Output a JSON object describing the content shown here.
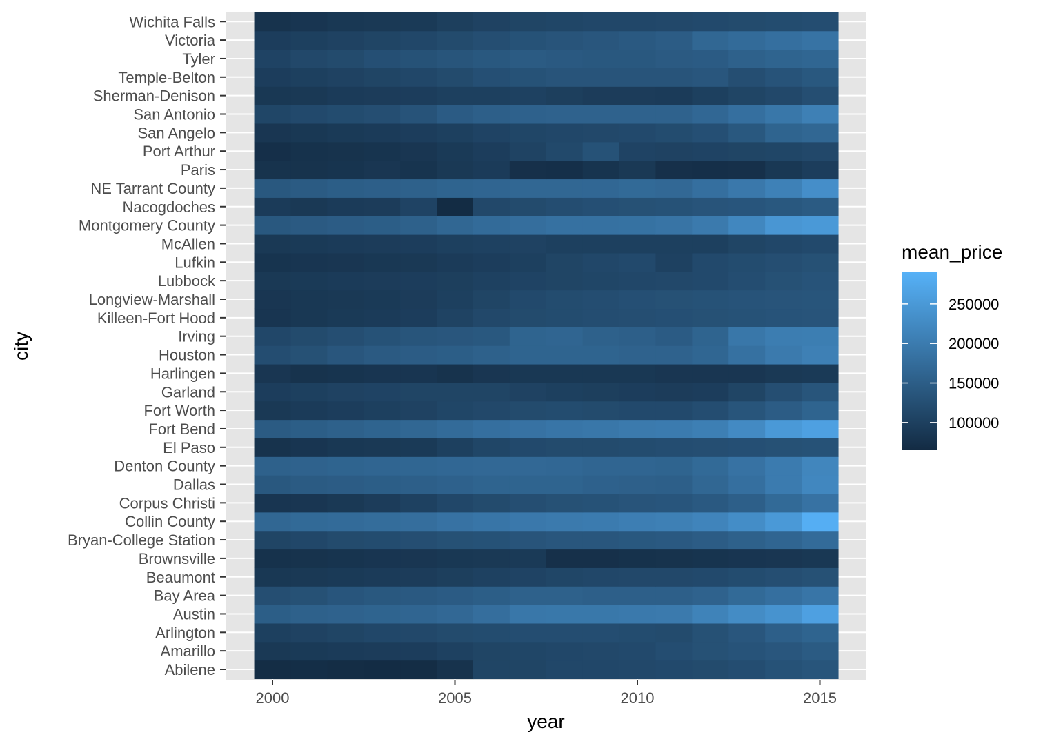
{
  "chart_data": {
    "type": "heatmap",
    "xlabel": "year",
    "ylabel": "city",
    "x": [
      2000,
      2001,
      2002,
      2003,
      2004,
      2005,
      2006,
      2007,
      2008,
      2009,
      2010,
      2011,
      2012,
      2013,
      2014,
      2015
    ],
    "x_ticks": [
      "2000",
      "2005",
      "2010",
      "2015"
    ],
    "xlim": [
      1999,
      2016
    ],
    "cities": [
      "Abilene",
      "Amarillo",
      "Arlington",
      "Austin",
      "Bay Area",
      "Beaumont",
      "Brownsville",
      "Bryan-College Station",
      "Collin County",
      "Corpus Christi",
      "Dallas",
      "Denton County",
      "El Paso",
      "Fort Bend",
      "Fort Worth",
      "Garland",
      "Harlingen",
      "Houston",
      "Irving",
      "Killeen-Fort Hood",
      "Longview-Marshall",
      "Lubbock",
      "Lufkin",
      "McAllen",
      "Montgomery County",
      "Nacogdoches",
      "NE Tarrant County",
      "Paris",
      "Port Arthur",
      "San Angelo",
      "San Antonio",
      "Sherman-Denison",
      "Temple-Belton",
      "Tyler",
      "Victoria",
      "Wichita Falls"
    ],
    "values": [
      [
        68000,
        70000,
        68000,
        66000,
        68000,
        78000,
        108000,
        108000,
        112000,
        112000,
        114000,
        116000,
        118000,
        122000,
        130000,
        135000
      ],
      [
        88000,
        90000,
        92000,
        94000,
        96000,
        102000,
        108000,
        110000,
        112000,
        114000,
        116000,
        122000,
        128000,
        132000,
        138000,
        145000
      ],
      [
        100000,
        104000,
        108000,
        112000,
        114000,
        118000,
        120000,
        122000,
        122000,
        122000,
        120000,
        118000,
        128000,
        138000,
        152000,
        160000
      ],
      [
        150000,
        155000,
        158000,
        160000,
        162000,
        168000,
        178000,
        192000,
        194000,
        194000,
        196000,
        198000,
        212000,
        228000,
        240000,
        262000
      ],
      [
        124000,
        128000,
        136000,
        140000,
        142000,
        146000,
        150000,
        155000,
        155000,
        152000,
        152000,
        152000,
        158000,
        170000,
        180000,
        190000
      ],
      [
        86000,
        88000,
        90000,
        92000,
        94000,
        98000,
        102000,
        106000,
        110000,
        112000,
        114000,
        114000,
        116000,
        120000,
        124000,
        128000
      ],
      [
        76000,
        78000,
        80000,
        82000,
        84000,
        86000,
        88000,
        90000,
        74000,
        74000,
        76000,
        78000,
        80000,
        82000,
        84000,
        86000
      ],
      [
        108000,
        112000,
        118000,
        120000,
        124000,
        128000,
        130000,
        134000,
        138000,
        138000,
        140000,
        142000,
        148000,
        155000,
        162000,
        172000
      ],
      [
        165000,
        170000,
        172000,
        175000,
        178000,
        185000,
        190000,
        195000,
        198000,
        200000,
        205000,
        208000,
        215000,
        230000,
        250000,
        285000
      ],
      [
        82000,
        84000,
        88000,
        94000,
        102000,
        112000,
        118000,
        124000,
        128000,
        130000,
        134000,
        136000,
        142000,
        152000,
        170000,
        185000
      ],
      [
        140000,
        145000,
        148000,
        150000,
        152000,
        156000,
        160000,
        160000,
        160000,
        156000,
        154000,
        152000,
        165000,
        180000,
        200000,
        220000
      ],
      [
        155000,
        158000,
        160000,
        162000,
        164000,
        166000,
        168000,
        168000,
        166000,
        162000,
        162000,
        160000,
        170000,
        185000,
        200000,
        218000
      ],
      [
        78000,
        82000,
        86000,
        88000,
        90000,
        100000,
        110000,
        116000,
        118000,
        118000,
        120000,
        122000,
        124000,
        126000,
        128000,
        130000
      ],
      [
        145000,
        150000,
        155000,
        160000,
        165000,
        172000,
        180000,
        185000,
        190000,
        192000,
        198000,
        200000,
        206000,
        225000,
        250000,
        262000
      ],
      [
        88000,
        92000,
        96000,
        100000,
        104000,
        110000,
        114000,
        118000,
        120000,
        118000,
        116000,
        116000,
        122000,
        135000,
        148000,
        160000
      ],
      [
        96000,
        100000,
        104000,
        106000,
        108000,
        108000,
        108000,
        104000,
        100000,
        98000,
        96000,
        94000,
        96000,
        108000,
        124000,
        135000
      ],
      [
        84000,
        78000,
        80000,
        82000,
        82000,
        78000,
        84000,
        86000,
        86000,
        86000,
        86000,
        84000,
        84000,
        84000,
        88000,
        90000
      ],
      [
        122000,
        128000,
        138000,
        144000,
        148000,
        150000,
        155000,
        160000,
        160000,
        160000,
        158000,
        158000,
        164000,
        182000,
        198000,
        208000
      ],
      [
        112000,
        118000,
        124000,
        130000,
        135000,
        138000,
        140000,
        160000,
        162000,
        155000,
        152000,
        146000,
        160000,
        192000,
        202000,
        204000
      ],
      [
        82000,
        86000,
        90000,
        92000,
        96000,
        105000,
        114000,
        118000,
        120000,
        122000,
        124000,
        126000,
        128000,
        130000,
        132000,
        134000
      ],
      [
        84000,
        86000,
        88000,
        90000,
        94000,
        100000,
        108000,
        116000,
        120000,
        122000,
        126000,
        128000,
        130000,
        132000,
        134000,
        135000
      ],
      [
        88000,
        90000,
        92000,
        94000,
        96000,
        98000,
        102000,
        106000,
        108000,
        110000,
        112000,
        114000,
        116000,
        122000,
        128000,
        132000
      ],
      [
        80000,
        82000,
        84000,
        86000,
        88000,
        92000,
        96000,
        100000,
        108000,
        112000,
        116000,
        102000,
        116000,
        120000,
        124000,
        128000
      ],
      [
        88000,
        90000,
        92000,
        94000,
        96000,
        100000,
        102000,
        104000,
        100000,
        100000,
        100000,
        100000,
        100000,
        108000,
        112000,
        116000
      ],
      [
        140000,
        144000,
        148000,
        150000,
        155000,
        165000,
        172000,
        178000,
        182000,
        182000,
        184000,
        188000,
        198000,
        220000,
        245000,
        250000
      ],
      [
        92000,
        88000,
        92000,
        94000,
        106000,
        66000,
        114000,
        118000,
        122000,
        126000,
        128000,
        130000,
        134000,
        136000,
        140000,
        145000
      ],
      [
        140000,
        145000,
        150000,
        152000,
        155000,
        160000,
        162000,
        165000,
        165000,
        166000,
        170000,
        168000,
        180000,
        195000,
        210000,
        232000
      ],
      [
        78000,
        78000,
        80000,
        84000,
        80000,
        88000,
        92000,
        74000,
        72000,
        80000,
        88000,
        74000,
        72000,
        74000,
        86000,
        96000
      ],
      [
        72000,
        76000,
        78000,
        80000,
        84000,
        90000,
        96000,
        105000,
        115000,
        130000,
        106000,
        104000,
        106000,
        108000,
        110000,
        114000
      ],
      [
        84000,
        86000,
        90000,
        92000,
        96000,
        100000,
        106000,
        110000,
        112000,
        114000,
        116000,
        120000,
        126000,
        140000,
        160000,
        165000
      ],
      [
        110000,
        116000,
        120000,
        124000,
        132000,
        146000,
        152000,
        156000,
        158000,
        158000,
        158000,
        158000,
        166000,
        180000,
        192000,
        208000
      ],
      [
        86000,
        88000,
        92000,
        94000,
        96000,
        100000,
        100000,
        102000,
        98000,
        94000,
        94000,
        92000,
        100000,
        108000,
        114000,
        124000
      ],
      [
        96000,
        100000,
        104000,
        108000,
        112000,
        118000,
        126000,
        130000,
        134000,
        134000,
        134000,
        134000,
        138000,
        124000,
        132000,
        140000
      ],
      [
        106000,
        114000,
        118000,
        126000,
        130000,
        135000,
        140000,
        145000,
        142000,
        140000,
        140000,
        144000,
        146000,
        155000,
        160000,
        164000
      ],
      [
        96000,
        100000,
        104000,
        108000,
        112000,
        118000,
        124000,
        130000,
        134000,
        138000,
        142000,
        148000,
        165000,
        172000,
        180000,
        186000
      ],
      [
        78000,
        82000,
        86000,
        88000,
        90000,
        98000,
        104000,
        108000,
        110000,
        112000,
        112000,
        114000,
        116000,
        118000,
        120000,
        122000
      ]
    ],
    "legend": {
      "title": "mean_price",
      "ticks": [
        100000,
        150000,
        200000,
        250000
      ],
      "tick_labels": [
        "100000",
        "150000",
        "200000",
        "250000"
      ],
      "range": [
        65000,
        290000
      ],
      "low_color": "#132B43",
      "high_color": "#56B1F7"
    },
    "panel_background": "#E5E5E5",
    "grid_color": "#FFFFFF",
    "grid": true,
    "legend_position": "right"
  }
}
